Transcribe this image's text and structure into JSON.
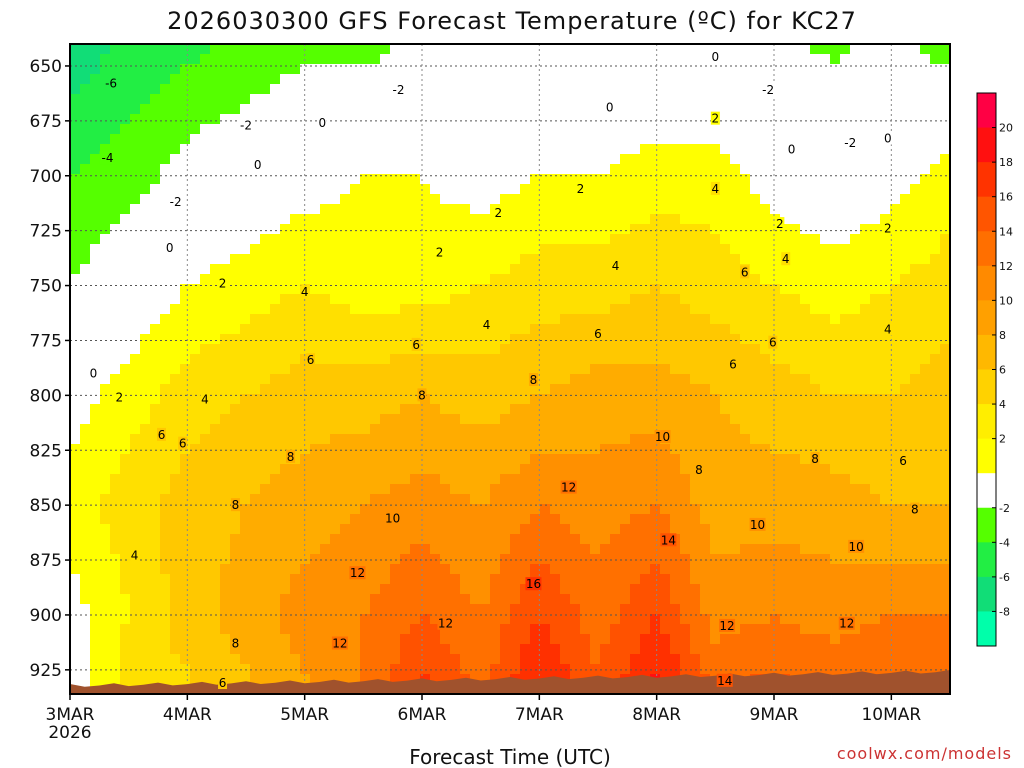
{
  "chart_data": {
    "type": "heatmap",
    "title": "2026030300 GFS Forecast Temperature (ºC) for KC27",
    "xlabel": "Forecast Time (UTC)",
    "ylabel": "",
    "credit": "coolwx.com/models",
    "x_range": [
      0,
      7.5
    ],
    "y_range": [
      640,
      936
    ],
    "y_ticks": [
      650,
      675,
      700,
      725,
      750,
      775,
      800,
      825,
      850,
      875,
      900,
      925
    ],
    "x_ticks": [
      {
        "x": 0,
        "label": "3MAR",
        "sublabel": "2026"
      },
      {
        "x": 1,
        "label": "4MAR",
        "sublabel": ""
      },
      {
        "x": 2,
        "label": "5MAR",
        "sublabel": ""
      },
      {
        "x": 3,
        "label": "6MAR",
        "sublabel": ""
      },
      {
        "x": 4,
        "label": "7MAR",
        "sublabel": ""
      },
      {
        "x": 5,
        "label": "8MAR",
        "sublabel": ""
      },
      {
        "x": 6,
        "label": "9MAR",
        "sublabel": ""
      },
      {
        "x": 7,
        "label": "10MAR",
        "sublabel": ""
      }
    ],
    "colorbar": {
      "labels": [
        "20",
        "18",
        "16",
        "14",
        "12",
        "10",
        "8",
        "6",
        "4",
        "2",
        "-2",
        "-4",
        "-6",
        "-8"
      ],
      "colors": [
        "#ff0044",
        "#ff1010",
        "#ff3300",
        "#ff5500",
        "#ff6f00",
        "#ff8a00",
        "#ffa000",
        "#ffb800",
        "#ffd200",
        "#ffee00",
        "#ffff00",
        "#ffffff",
        "#55ff00",
        "#22ee44",
        "#11dd77",
        "#00ffaa"
      ]
    },
    "series": [
      {
        "name": "temperature at 650 hPa",
        "x": [
          0,
          0.5,
          1,
          1.5,
          2,
          2.5,
          3,
          3.5,
          4,
          4.5,
          5,
          5.5,
          6,
          6.5,
          7,
          7.5
        ],
        "values": [
          -7,
          -5,
          -4,
          -3,
          -2,
          -2,
          -1,
          -1,
          -1,
          0,
          0,
          -1,
          -1,
          -2,
          -1,
          -2
        ]
      },
      {
        "name": "temperature at 700 hPa",
        "x": [
          0,
          0.5,
          1,
          1.5,
          2,
          2.5,
          3,
          3.5,
          4,
          4.5,
          5,
          5.5,
          6,
          6.5,
          7,
          7.5
        ],
        "values": [
          -4,
          -3,
          -1,
          0,
          1,
          2,
          2,
          1,
          2,
          2,
          3,
          3,
          1,
          0,
          1,
          3
        ]
      },
      {
        "name": "temperature at 750 hPa",
        "x": [
          0,
          0.5,
          1,
          1.5,
          2,
          2.5,
          3,
          3.5,
          4,
          4.5,
          5,
          5.5,
          6,
          6.5,
          7,
          7.5
        ],
        "values": [
          -2,
          0,
          2,
          3,
          4,
          3,
          3,
          4,
          5,
          5,
          6,
          5,
          4,
          3,
          4,
          5
        ]
      },
      {
        "name": "temperature at 800 hPa",
        "x": [
          0,
          0.5,
          1,
          1.5,
          2,
          2.5,
          3,
          3.5,
          4,
          4.5,
          5,
          5.5,
          6,
          6.5,
          7,
          7.5
        ],
        "values": [
          1,
          3,
          5,
          6,
          7,
          7,
          8,
          7,
          8,
          9,
          9,
          8,
          7,
          6,
          6,
          7
        ]
      },
      {
        "name": "temperature at 850 hPa",
        "x": [
          0,
          0.5,
          1,
          1.5,
          2,
          2.5,
          3,
          3.5,
          4,
          4.5,
          5,
          5.5,
          6,
          6.5,
          7,
          7.5
        ],
        "values": [
          3,
          5,
          7,
          8,
          9,
          10,
          11,
          10,
          12,
          11,
          12,
          9,
          9,
          9,
          8,
          8
        ]
      },
      {
        "name": "temperature at 900 hPa",
        "x": [
          0,
          0.5,
          1,
          1.5,
          2,
          2.5,
          3,
          3.5,
          4,
          4.5,
          5,
          5.5,
          6,
          6.5,
          7,
          7.5
        ],
        "values": [
          1,
          4,
          7,
          9,
          11,
          12,
          14,
          12,
          16,
          13,
          16,
          11,
          12,
          11,
          12,
          12
        ]
      },
      {
        "name": "temperature at 925 hPa",
        "x": [
          0,
          0.5,
          1,
          1.5,
          2,
          2.5,
          3,
          3.5,
          4,
          4.5,
          5,
          5.5,
          6,
          6.5,
          7,
          7.5
        ],
        "values": [
          0,
          5,
          6,
          8,
          10,
          12,
          16,
          13,
          18,
          14,
          18,
          13,
          14,
          13,
          14,
          14
        ]
      }
    ],
    "contour_labels": [
      {
        "text": "-6",
        "x": 0.35,
        "y": 658
      },
      {
        "text": "-4",
        "x": 0.32,
        "y": 692
      },
      {
        "text": "-2",
        "x": 1.5,
        "y": 677
      },
      {
        "text": "-2",
        "x": 0.9,
        "y": 712
      },
      {
        "text": "-2",
        "x": 2.8,
        "y": 661
      },
      {
        "text": "0",
        "x": 2.15,
        "y": 676
      },
      {
        "text": "0",
        "x": 1.6,
        "y": 695
      },
      {
        "text": "0",
        "x": 0.85,
        "y": 733
      },
      {
        "text": "0",
        "x": 0.2,
        "y": 790
      },
      {
        "text": "2",
        "x": 1.3,
        "y": 749
      },
      {
        "text": "2",
        "x": 0.42,
        "y": 801
      },
      {
        "text": "4",
        "x": 2.0,
        "y": 753
      },
      {
        "text": "4",
        "x": 1.15,
        "y": 802
      },
      {
        "text": "4",
        "x": 0.55,
        "y": 873
      },
      {
        "text": "6",
        "x": 2.05,
        "y": 784
      },
      {
        "text": "6",
        "x": 0.78,
        "y": 818
      },
      {
        "text": "6",
        "x": 0.96,
        "y": 822
      },
      {
        "text": "6",
        "x": 1.3,
        "y": 931
      },
      {
        "text": "8",
        "x": 1.41,
        "y": 850
      },
      {
        "text": "8",
        "x": 1.41,
        "y": 913
      },
      {
        "text": "8",
        "x": 1.88,
        "y": 828
      },
      {
        "text": "6",
        "x": 2.95,
        "y": 777
      },
      {
        "text": "8",
        "x": 3.0,
        "y": 800
      },
      {
        "text": "2",
        "x": 3.15,
        "y": 735
      },
      {
        "text": "2",
        "x": 3.65,
        "y": 717
      },
      {
        "text": "4",
        "x": 3.55,
        "y": 768
      },
      {
        "text": "6",
        "x": 4.5,
        "y": 772
      },
      {
        "text": "8",
        "x": 3.95,
        "y": 793
      },
      {
        "text": "10",
        "x": 2.75,
        "y": 856
      },
      {
        "text": "12",
        "x": 2.45,
        "y": 881
      },
      {
        "text": "12",
        "x": 2.3,
        "y": 913
      },
      {
        "text": "12",
        "x": 3.2,
        "y": 904
      },
      {
        "text": "12",
        "x": 4.25,
        "y": 842
      },
      {
        "text": "16",
        "x": 3.95,
        "y": 886
      },
      {
        "text": "10",
        "x": 5.05,
        "y": 819
      },
      {
        "text": "14",
        "x": 5.1,
        "y": 866
      },
      {
        "text": "8",
        "x": 5.36,
        "y": 834
      },
      {
        "text": "2",
        "x": 4.35,
        "y": 706
      },
      {
        "text": "4",
        "x": 4.65,
        "y": 741
      },
      {
        "text": "0",
        "x": 4.6,
        "y": 669
      },
      {
        "text": "0",
        "x": 5.5,
        "y": 646
      },
      {
        "text": "2",
        "x": 5.5,
        "y": 674
      },
      {
        "text": "4",
        "x": 5.5,
        "y": 706
      },
      {
        "text": "6",
        "x": 5.75,
        "y": 744
      },
      {
        "text": "6",
        "x": 5.65,
        "y": 786
      },
      {
        "text": "-2",
        "x": 5.95,
        "y": 661
      },
      {
        "text": "0",
        "x": 6.15,
        "y": 688
      },
      {
        "text": "2",
        "x": 6.05,
        "y": 722
      },
      {
        "text": "4",
        "x": 6.1,
        "y": 738
      },
      {
        "text": "6",
        "x": 5.99,
        "y": 776
      },
      {
        "text": "8",
        "x": 6.35,
        "y": 829
      },
      {
        "text": "10",
        "x": 5.86,
        "y": 859
      },
      {
        "text": "12",
        "x": 5.6,
        "y": 905
      },
      {
        "text": "14",
        "x": 5.58,
        "y": 930
      },
      {
        "text": "-2",
        "x": 6.65,
        "y": 685
      },
      {
        "text": "0",
        "x": 6.97,
        "y": 683
      },
      {
        "text": "2",
        "x": 6.97,
        "y": 724
      },
      {
        "text": "4",
        "x": 6.97,
        "y": 770
      },
      {
        "text": "6",
        "x": 7.1,
        "y": 830
      },
      {
        "text": "8",
        "x": 7.2,
        "y": 852
      },
      {
        "text": "10",
        "x": 6.7,
        "y": 869
      },
      {
        "text": "12",
        "x": 6.62,
        "y": 904
      }
    ]
  }
}
